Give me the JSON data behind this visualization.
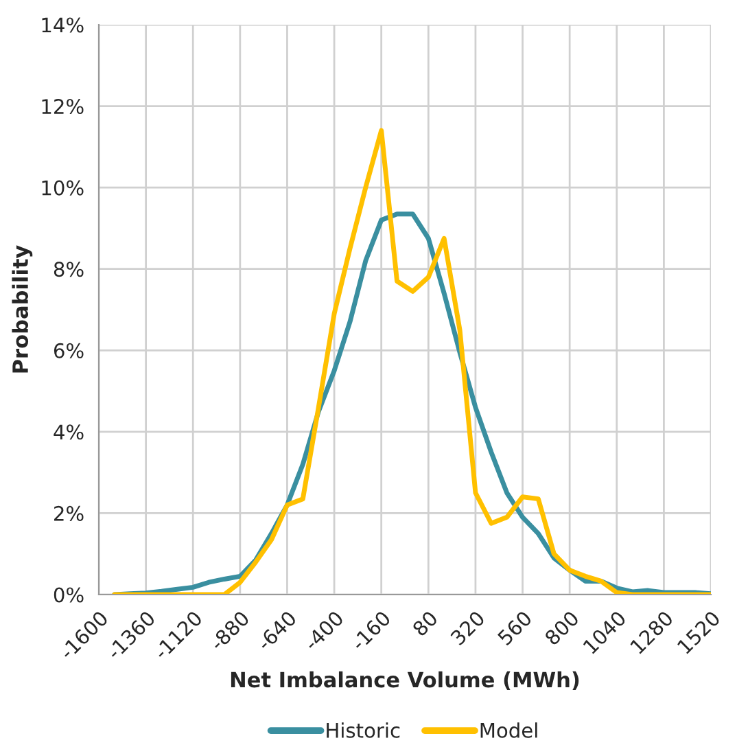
{
  "chart_data": {
    "type": "line",
    "xlabel": "Net Imbalance Volume (MWh)",
    "ylabel": "Probability",
    "x": [
      -1520,
      -1440,
      -1360,
      -1280,
      -1200,
      -1120,
      -1040,
      -960,
      -880,
      -800,
      -720,
      -640,
      -560,
      -480,
      -400,
      -320,
      -240,
      -160,
      -80,
      0,
      80,
      160,
      240,
      320,
      400,
      480,
      560,
      640,
      720,
      800,
      880,
      960,
      1040,
      1120,
      1200,
      1280,
      1360,
      1440,
      1520
    ],
    "series": [
      {
        "name": "Historic",
        "color": "#3a8fa0",
        "values": [
          0.0,
          0.02,
          0.04,
          0.08,
          0.13,
          0.18,
          0.3,
          0.38,
          0.45,
          0.85,
          1.5,
          2.2,
          3.2,
          4.5,
          5.5,
          6.7,
          8.2,
          9.2,
          9.35,
          9.35,
          8.75,
          7.4,
          5.95,
          4.6,
          3.5,
          2.5,
          1.9,
          1.5,
          0.9,
          0.6,
          0.33,
          0.33,
          0.16,
          0.07,
          0.1,
          0.05,
          0.05,
          0.05,
          0.02
        ]
      },
      {
        "name": "Model",
        "color": "#ffc000",
        "values": [
          0,
          0,
          0,
          0,
          0,
          0,
          0,
          0,
          0.3,
          0.8,
          1.35,
          2.2,
          2.35,
          4.6,
          6.9,
          8.5,
          10.0,
          11.4,
          7.7,
          7.45,
          7.8,
          8.75,
          6.5,
          2.5,
          1.75,
          1.9,
          2.4,
          2.35,
          1.0,
          0.6,
          0.45,
          0.33,
          0.05,
          0,
          0,
          0,
          0,
          0,
          0
        ]
      }
    ],
    "xlim": [
      -1600,
      1520
    ],
    "xticks": [
      -1600,
      -1360,
      -1120,
      -880,
      -640,
      -400,
      -160,
      80,
      320,
      560,
      800,
      1040,
      1280,
      1520
    ],
    "ylim": [
      0,
      14
    ],
    "yticks": [
      {
        "value": 0,
        "label": "0%"
      },
      {
        "value": 2,
        "label": "2%"
      },
      {
        "value": 4,
        "label": "4%"
      },
      {
        "value": 6,
        "label": "6%"
      },
      {
        "value": 8,
        "label": "8%"
      },
      {
        "value": 10,
        "label": "10%"
      },
      {
        "value": 12,
        "label": "12%"
      },
      {
        "value": 14,
        "label": "14%"
      }
    ],
    "grid": true,
    "legend": "bottom",
    "marker": "none",
    "line_style": "solid"
  }
}
